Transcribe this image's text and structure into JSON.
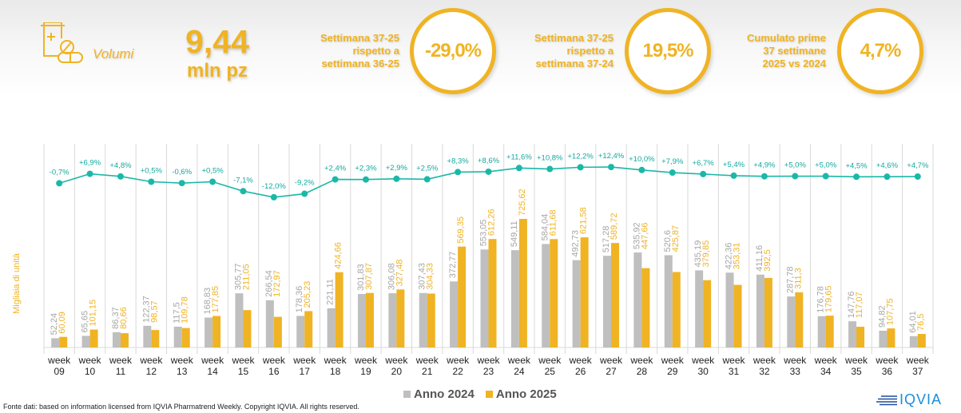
{
  "header": {
    "icon": "medicine-bottle-pills-icon",
    "section_label": "Volumi",
    "main_value": "9,44",
    "main_unit": "mln pz",
    "kpis": [
      {
        "desc_lines": [
          "Settimana 37-25",
          "rispetto a",
          "settimana 36-25"
        ],
        "value": "-29,0%"
      },
      {
        "desc_lines": [
          "Settimana 37-25",
          "rispetto a",
          "settimana 37-24"
        ],
        "value": "19,5%"
      },
      {
        "desc_lines": [
          "Cumulato prime",
          "37 settimane",
          "2025 vs 2024"
        ],
        "value": "4,7%"
      }
    ]
  },
  "colors": {
    "accent": "#f0b323",
    "series_2024": "#bfbfbf",
    "series_2025": "#f0b323",
    "growth_line": "#1ab8a8",
    "grid": "#d9d9d9"
  },
  "chart_data": {
    "type": "bar",
    "title": "",
    "xlabel": "",
    "ylabel": "Migliaia di unità",
    "categories": [
      "week 09",
      "week 10",
      "week 11",
      "week 12",
      "week 13",
      "week 14",
      "week 15",
      "week 16",
      "week 17",
      "week 18",
      "week 19",
      "week 20",
      "week 21",
      "week 22",
      "week 23",
      "week 24",
      "week 25",
      "week 26",
      "week 27",
      "week 28",
      "week 29",
      "week 30",
      "week 31",
      "week 32",
      "week 33",
      "week 34",
      "week 35",
      "week 36",
      "week 37"
    ],
    "series": [
      {
        "name": "Anno 2024",
        "values": [
          52.24,
          65.65,
          86.37,
          122.37,
          117.5,
          168.83,
          305.77,
          266.54,
          178.36,
          221.11,
          301.83,
          306.08,
          307.43,
          372.77,
          553.05,
          549.11,
          584.04,
          492.73,
          517.28,
          535.92,
          520.6,
          435.19,
          422.36,
          411.16,
          287.78,
          176.78,
          147.76,
          94.82,
          64.01
        ],
        "labels": [
          "52,24",
          "65,65",
          "86,37",
          "122,37",
          "117,5",
          "168,83",
          "305,77",
          "266,54",
          "178,36",
          "221,11",
          "301,83",
          "306,08",
          "307,43",
          "372,77",
          "553,05",
          "549,11",
          "584,04",
          "492,73",
          "517,28",
          "535,92",
          "520,6",
          "435,19",
          "422,36",
          "411,16",
          "287,78",
          "176,78",
          "147,76",
          "94,82",
          "64,01"
        ]
      },
      {
        "name": "Anno 2025",
        "values": [
          60.09,
          101.15,
          80.66,
          98.57,
          109.78,
          177.85,
          211.05,
          172.97,
          205.23,
          424.66,
          307.87,
          327.48,
          304.33,
          569.35,
          612.26,
          725.62,
          611.68,
          621.58,
          589.72,
          447.66,
          425.87,
          379.85,
          353.31,
          392.5,
          311.3,
          179.65,
          117.07,
          107.75,
          76.5
        ],
        "labels": [
          "60,09",
          "101,15",
          "80,66",
          "98,57",
          "109,78",
          "177,85",
          "211,05",
          "172,97",
          "205,23",
          "424,66",
          "307,87",
          "327,48",
          "304,33",
          "569,35",
          "612,26",
          "725,62",
          "611,68",
          "621,58",
          "589,72",
          "447,66",
          "425,87",
          "379,85",
          "353,31",
          "392,5",
          "311,3",
          "179,65",
          "117,07",
          "107,75",
          "76,5"
        ]
      }
    ],
    "growth_line": {
      "name": "Cumulative growth %",
      "values": [
        -0.7,
        6.9,
        4.8,
        0.5,
        -0.6,
        0.5,
        -7.1,
        -12.0,
        -9.2,
        2.4,
        2.3,
        2.9,
        2.5,
        8.3,
        8.6,
        11.6,
        10.8,
        12.2,
        12.4,
        10.0,
        7.9,
        6.7,
        5.4,
        4.9,
        5.0,
        5.0,
        4.5,
        4.6,
        4.7
      ],
      "labels": [
        "-0,7%",
        "+6,9%",
        "+4,8%",
        "+0,5%",
        "-0,6%",
        "+0,5%",
        "-7,1%",
        "-12,0%",
        "-9,2%",
        "+2,4%",
        "+2,3%",
        "+2,9%",
        "+2,5%",
        "+8,3%",
        "+8,6%",
        "+11,6%",
        "+10,8%",
        "+12,2%",
        "+12,4%",
        "+10,0%",
        "+7,9%",
        "+6,7%",
        "+5,4%",
        "+4,9%",
        "+5,0%",
        "+5,0%",
        "+4,5%",
        "+4,6%",
        "+4,7%"
      ]
    },
    "ylim": [
      0,
      750
    ],
    "grid": "vertical",
    "legend": "bottom-center"
  },
  "legend": {
    "items": [
      {
        "label": "Anno 2024"
      },
      {
        "label": "Anno 2025"
      }
    ]
  },
  "footer": {
    "source": "Fonte dati: based on information licensed from IQVIA Pharmatrend Weekly. Copyright IQVIA. All rights reserved."
  },
  "logo": {
    "text": "IQVIA"
  }
}
